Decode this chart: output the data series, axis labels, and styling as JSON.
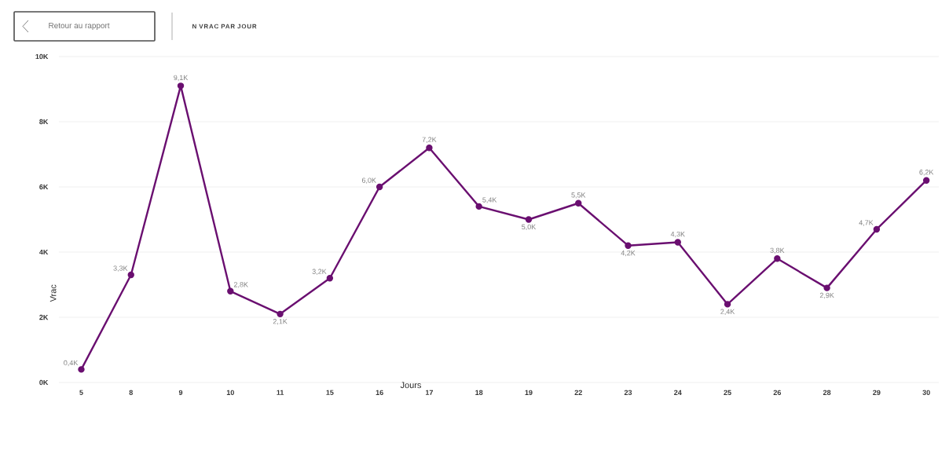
{
  "chart_data": {
    "type": "line",
    "title": "N VRAC PAR JOUR",
    "xlabel": "Jours",
    "ylabel": "Vrac",
    "annotations": [
      "Retour au rapport"
    ],
    "categories": [
      "5",
      "8",
      "9",
      "10",
      "11",
      "15",
      "16",
      "17",
      "18",
      "19",
      "22",
      "23",
      "24",
      "25",
      "26",
      "28",
      "29",
      "30"
    ],
    "values": [
      400,
      3300,
      9100,
      2800,
      2100,
      3200,
      6000,
      7200,
      5400,
      5000,
      5500,
      4200,
      4300,
      2400,
      3800,
      2900,
      4700,
      6200
    ],
    "value_labels": [
      "0,4K",
      "3,3K",
      "9,1K",
      "2,8K",
      "2,1K",
      "3,2K",
      "6,0K",
      "7,2K",
      "5,4K",
      "5,0K",
      "5,5K",
      "4,2K",
      "4,3K",
      "2,4K",
      "3,8K",
      "2,9K",
      "4,7K",
      "6,2K"
    ],
    "color": "#6a0f70",
    "ylim": [
      0,
      10000
    ],
    "yticks": [
      {
        "value": 0,
        "label": "0K"
      },
      {
        "value": 2000,
        "label": "2K"
      },
      {
        "value": 4000,
        "label": "4K"
      },
      {
        "value": 6000,
        "label": "6K"
      },
      {
        "value": 8000,
        "label": "8K"
      },
      {
        "value": 10000,
        "label": "10K"
      }
    ],
    "grid": "y",
    "marker": "circle",
    "line_style": "solid"
  }
}
